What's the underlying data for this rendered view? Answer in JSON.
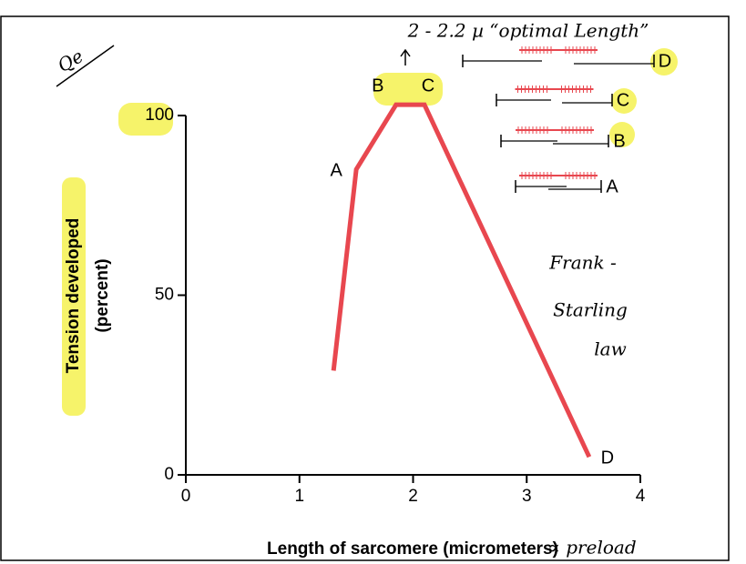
{
  "chart_data": {
    "type": "line",
    "x_label": "Length of sarcomere (micrometers)",
    "y_label": [
      "Tension developed",
      "(percent)"
    ],
    "x": [
      1.3,
      1.5,
      1.85,
      2.1,
      3.55
    ],
    "series": [
      {
        "color": "#e8474f",
        "values": [
          29,
          85,
          103,
          103,
          5
        ]
      }
    ],
    "point_labels": [
      null,
      "A",
      "B",
      "C",
      "D"
    ],
    "xlim": [
      0,
      4
    ],
    "ylim": [
      0,
      100
    ],
    "xticks": [
      0,
      1,
      2,
      3,
      4
    ],
    "yticks": [
      0,
      50,
      100
    ],
    "sarcomere_labels": [
      "D",
      "C",
      "B",
      "A"
    ],
    "note_corner": "Qe",
    "note_top": "2 - 2.2 µ  “optimal Length”",
    "note_law": [
      "Frank -",
      "Starling",
      "law"
    ],
    "note_preload": "∝ preload"
  }
}
